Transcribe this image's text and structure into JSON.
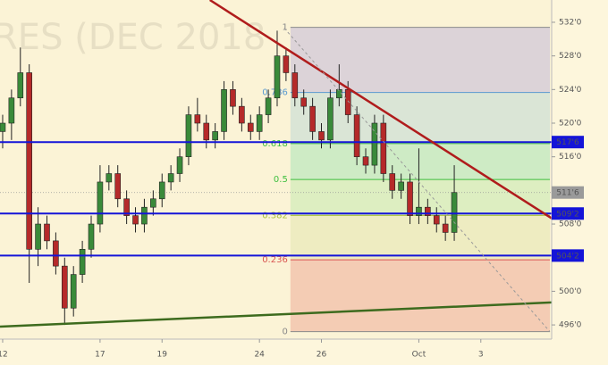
{
  "chart_data": {
    "type": "candlestick",
    "watermark": "RES (DEC 2018",
    "background": "#fbf3d6",
    "xlim": [
      -0.3,
      62
    ],
    "ylim": [
      494.31,
      534.65
    ],
    "xticks": [
      {
        "value": 0,
        "label": "12"
      },
      {
        "value": 11,
        "label": "17"
      },
      {
        "value": 18,
        "label": "19"
      },
      {
        "value": 29,
        "label": "24"
      },
      {
        "value": 36,
        "label": "26"
      },
      {
        "value": 47,
        "label": "Oct"
      },
      {
        "value": 54,
        "label": "3"
      }
    ],
    "yticks": [
      {
        "value": 532,
        "label": "532'0"
      },
      {
        "value": 528,
        "label": "528'0"
      },
      {
        "value": 524,
        "label": "524'0"
      },
      {
        "value": 520,
        "label": "520'0"
      },
      {
        "value": 516,
        "label": "516'0"
      },
      {
        "value": 508,
        "label": "508'0"
      },
      {
        "value": 500,
        "label": "500'0"
      },
      {
        "value": 496,
        "label": "496'0"
      }
    ],
    "up_color": "#3a8a3a",
    "down_color": "#b52a2a",
    "open": [
      519,
      520,
      523,
      526,
      505,
      508,
      506,
      503,
      498,
      502,
      505,
      508,
      513,
      514,
      511,
      509,
      508,
      510,
      511,
      513,
      514,
      516,
      521,
      520,
      518,
      519,
      524,
      522,
      520,
      519,
      521,
      523,
      528,
      526,
      523,
      522,
      519,
      518,
      523,
      524,
      521,
      516,
      515,
      520,
      514,
      512,
      513,
      509,
      510,
      509,
      508,
      507
    ],
    "high": [
      521,
      524,
      529,
      527,
      510,
      509,
      507,
      504,
      503,
      506,
      509,
      515,
      515,
      515,
      512,
      510,
      511,
      512,
      514,
      515,
      517,
      522,
      523,
      521,
      520,
      525,
      525,
      523,
      521,
      522,
      524,
      531,
      529,
      527,
      524,
      523,
      520,
      524,
      527,
      525,
      522,
      517,
      521,
      521,
      515,
      514,
      514,
      517,
      511,
      510,
      509,
      515
    ],
    "low": [
      517,
      518,
      522,
      501,
      503,
      505,
      502,
      496,
      497,
      501,
      504,
      507,
      512,
      510,
      508,
      507,
      507,
      509,
      510,
      512,
      513,
      515,
      519,
      517,
      517,
      518,
      521,
      519,
      518,
      518,
      520,
      522,
      525,
      522,
      521,
      518,
      517,
      517,
      522,
      520,
      515,
      514,
      514,
      513,
      511,
      511,
      508,
      508,
      508,
      507,
      506,
      506
    ],
    "close": [
      520,
      523,
      526,
      505,
      508,
      506,
      503,
      498,
      502,
      505,
      508,
      513,
      514,
      511,
      509,
      508,
      510,
      511,
      513,
      514,
      516,
      521,
      520,
      518,
      519,
      524,
      522,
      520,
      519,
      521,
      523,
      528,
      526,
      523,
      522,
      519,
      518,
      523,
      524,
      521,
      516,
      515,
      520,
      514,
      512,
      513,
      509,
      510,
      509,
      508,
      507,
      511.75
    ],
    "levels": [
      {
        "value": 517.75,
        "label": "517'6",
        "color": "#1414d8"
      },
      {
        "value": 509.25,
        "label": "509'2",
        "color": "#1414d8"
      },
      {
        "value": 504.25,
        "label": "504'2",
        "color": "#1414d8"
      }
    ],
    "last_price": {
      "value": 511.75,
      "label": "511'6",
      "color": "#9a9a9a"
    },
    "trendlines": [
      {
        "color": "#b01c1c",
        "width": 2.5,
        "dashed": false,
        "x": [
          23.4,
          64.8
        ],
        "y": [
          534.65,
          506.8
        ]
      },
      {
        "color": "#3d6b1e",
        "width": 2.5,
        "dashed": false,
        "x": [
          -0.3,
          64.8
        ],
        "y": [
          495.8,
          498.8
        ]
      },
      {
        "color": "#999999",
        "width": 1,
        "dashed": true,
        "x": [
          31.8,
          61.8
        ],
        "y": [
          531.3,
          495.2
        ]
      }
    ],
    "fib": {
      "x": [
        32.5,
        61.8
      ],
      "high": 531.4,
      "low": 495.2,
      "levels": [
        {
          "value": 1,
          "color": "#8a8a8a",
          "fill": "#d8cfd8"
        },
        {
          "value": 0.786,
          "color": "#5a9ad0",
          "fill": "#d6e3d6"
        },
        {
          "value": 0.618,
          "color": "#3fbf3f",
          "fill": "#c9eac3"
        },
        {
          "value": 0.5,
          "color": "#3fbf3f",
          "fill": "#d9edbf"
        },
        {
          "value": 0.382,
          "color": "#a8c23a",
          "fill": "#ecebbf"
        },
        {
          "value": 0.236,
          "color": "#d9534f",
          "fill": "#f3c8b0"
        },
        {
          "value": 0,
          "color": "#8a8a8a"
        }
      ]
    }
  }
}
